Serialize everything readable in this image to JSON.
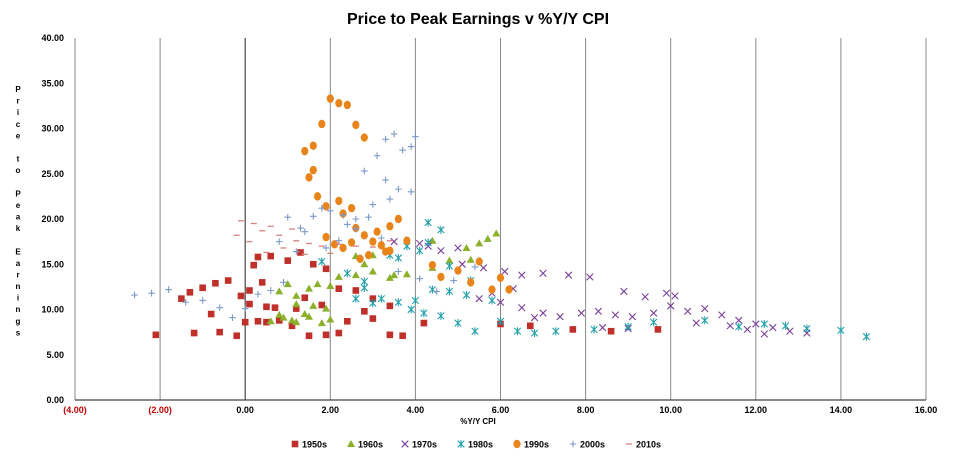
{
  "chart_data": {
    "type": "scatter",
    "title": "Price to Peak Earnings v %Y/Y CPI",
    "xlabel": "%Y/Y CPI",
    "ylabel": "Price to Peak Earnings",
    "xlim": [
      -4,
      16
    ],
    "ylim": [
      0,
      40
    ],
    "x_ticks": [
      "(4.00)",
      "(2.00)",
      "0.00",
      "2.00",
      "4.00",
      "6.00",
      "8.00",
      "10.00",
      "12.00",
      "14.00",
      "16.00"
    ],
    "y_ticks": [
      "0.00",
      "5.00",
      "10.00",
      "15.00",
      "20.00",
      "25.00",
      "30.00",
      "35.00",
      "40.00"
    ],
    "grid": "vertical",
    "legend_position": "bottom",
    "series": [
      {
        "name": "1950s",
        "marker": "square",
        "color": "#c0302a",
        "points": [
          [
            -2.1,
            7.2
          ],
          [
            -1.2,
            7.4
          ],
          [
            -0.6,
            7.5
          ],
          [
            -0.2,
            7.1
          ],
          [
            0.0,
            8.6
          ],
          [
            0.3,
            8.7
          ],
          [
            0.5,
            8.6
          ],
          [
            0.8,
            8.8
          ],
          [
            1.1,
            8.2
          ],
          [
            1.5,
            7.1
          ],
          [
            1.9,
            7.2
          ],
          [
            2.2,
            7.4
          ],
          [
            2.4,
            8.7
          ],
          [
            3.0,
            9.0
          ],
          [
            3.4,
            7.2
          ],
          [
            3.7,
            7.1
          ],
          [
            4.2,
            8.5
          ],
          [
            -1.5,
            11.2
          ],
          [
            -1.3,
            11.9
          ],
          [
            -1.0,
            12.4
          ],
          [
            -0.7,
            12.9
          ],
          [
            -0.4,
            13.2
          ],
          [
            -0.1,
            11.5
          ],
          [
            0.1,
            12.1
          ],
          [
            0.4,
            13.0
          ],
          [
            0.2,
            14.9
          ],
          [
            0.3,
            15.8
          ],
          [
            0.6,
            15.9
          ],
          [
            1.0,
            15.4
          ],
          [
            1.3,
            16.3
          ],
          [
            1.6,
            15.0
          ],
          [
            1.9,
            14.5
          ],
          [
            0.5,
            10.3
          ],
          [
            0.7,
            10.2
          ],
          [
            1.2,
            10.1
          ],
          [
            1.8,
            10.5
          ],
          [
            2.2,
            12.3
          ],
          [
            2.6,
            12.1
          ],
          [
            3.0,
            11.2
          ],
          [
            3.4,
            10.4
          ],
          [
            6.0,
            8.4
          ],
          [
            6.7,
            8.2
          ],
          [
            7.7,
            7.8
          ],
          [
            8.6,
            7.6
          ],
          [
            9.7,
            7.8
          ],
          [
            -0.8,
            9.5
          ],
          [
            0.1,
            10.6
          ],
          [
            1.4,
            11.3
          ],
          [
            2.8,
            9.8
          ]
        ]
      },
      {
        "name": "1960s",
        "marker": "triangle",
        "color": "#8ab02c",
        "points": [
          [
            0.6,
            8.7
          ],
          [
            0.9,
            9.1
          ],
          [
            1.2,
            8.6
          ],
          [
            1.5,
            9.2
          ],
          [
            1.8,
            8.5
          ],
          [
            2.0,
            8.9
          ],
          [
            0.8,
            12.0
          ],
          [
            1.0,
            12.8
          ],
          [
            1.2,
            11.5
          ],
          [
            1.5,
            12.3
          ],
          [
            1.7,
            12.8
          ],
          [
            2.0,
            12.6
          ],
          [
            1.2,
            10.6
          ],
          [
            1.6,
            10.4
          ],
          [
            2.2,
            13.6
          ],
          [
            2.6,
            13.8
          ],
          [
            3.0,
            14.2
          ],
          [
            3.4,
            13.5
          ],
          [
            2.6,
            15.9
          ],
          [
            3.0,
            16.0
          ],
          [
            3.5,
            13.8
          ],
          [
            3.8,
            13.9
          ],
          [
            4.4,
            14.6
          ],
          [
            4.8,
            15.4
          ],
          [
            5.3,
            15.5
          ],
          [
            5.5,
            17.3
          ],
          [
            5.7,
            17.8
          ],
          [
            5.9,
            18.4
          ],
          [
            4.4,
            17.6
          ],
          [
            5.2,
            16.8
          ],
          [
            1.4,
            9.5
          ],
          [
            1.9,
            10.1
          ],
          [
            1.1,
            8.8
          ],
          [
            0.8,
            9.4
          ],
          [
            2.8,
            15.0
          ]
        ]
      },
      {
        "name": "1970s",
        "marker": "x",
        "color": "#7a3f9a",
        "points": [
          [
            3.5,
            17.5
          ],
          [
            4.1,
            17.3
          ],
          [
            4.6,
            16.5
          ],
          [
            5.1,
            15.0
          ],
          [
            5.6,
            14.6
          ],
          [
            6.1,
            14.2
          ],
          [
            6.5,
            13.8
          ],
          [
            7.0,
            14.0
          ],
          [
            6.3,
            12.3
          ],
          [
            5.8,
            11.8
          ],
          [
            5.5,
            11.2
          ],
          [
            6.0,
            10.8
          ],
          [
            6.5,
            10.2
          ],
          [
            7.0,
            9.6
          ],
          [
            7.4,
            9.2
          ],
          [
            7.9,
            9.6
          ],
          [
            8.3,
            9.8
          ],
          [
            8.7,
            9.4
          ],
          [
            9.1,
            9.2
          ],
          [
            9.6,
            9.6
          ],
          [
            10.0,
            10.4
          ],
          [
            10.4,
            9.8
          ],
          [
            10.8,
            10.1
          ],
          [
            11.2,
            9.4
          ],
          [
            11.6,
            8.8
          ],
          [
            12.0,
            8.4
          ],
          [
            12.4,
            8.0
          ],
          [
            12.8,
            7.6
          ],
          [
            13.2,
            7.4
          ],
          [
            11.8,
            7.8
          ],
          [
            10.6,
            8.5
          ],
          [
            7.6,
            13.8
          ],
          [
            8.1,
            13.6
          ],
          [
            8.9,
            12.0
          ],
          [
            9.4,
            11.4
          ],
          [
            9.9,
            11.8
          ],
          [
            6.8,
            9.1
          ],
          [
            8.4,
            8.0
          ],
          [
            9.0,
            7.9
          ],
          [
            11.4,
            8.2
          ],
          [
            12.2,
            7.3
          ],
          [
            4.3,
            17.0
          ],
          [
            5.0,
            16.8
          ],
          [
            10.1,
            11.5
          ]
        ]
      },
      {
        "name": "1980s",
        "marker": "star",
        "color": "#22a0aa",
        "points": [
          [
            1.8,
            15.3
          ],
          [
            2.4,
            14.0
          ],
          [
            2.8,
            12.4
          ],
          [
            3.2,
            11.2
          ],
          [
            3.6,
            10.8
          ],
          [
            4.0,
            11.0
          ],
          [
            4.4,
            12.2
          ],
          [
            4.8,
            12.0
          ],
          [
            5.2,
            11.6
          ],
          [
            3.6,
            15.7
          ],
          [
            4.1,
            16.5
          ],
          [
            4.3,
            19.6
          ],
          [
            4.6,
            18.8
          ],
          [
            3.8,
            17.0
          ],
          [
            3.4,
            16.0
          ],
          [
            2.8,
            13.1
          ],
          [
            4.6,
            9.3
          ],
          [
            5.0,
            8.5
          ],
          [
            5.4,
            7.6
          ],
          [
            6.0,
            8.7
          ],
          [
            6.4,
            7.6
          ],
          [
            6.8,
            7.4
          ],
          [
            7.3,
            7.6
          ],
          [
            8.2,
            7.8
          ],
          [
            9.0,
            8.1
          ],
          [
            9.6,
            8.6
          ],
          [
            10.8,
            8.8
          ],
          [
            11.6,
            8.1
          ],
          [
            12.2,
            8.4
          ],
          [
            12.7,
            8.2
          ],
          [
            13.2,
            7.9
          ],
          [
            14.0,
            7.7
          ],
          [
            14.6,
            7.0
          ],
          [
            4.3,
            17.4
          ],
          [
            4.8,
            14.8
          ],
          [
            5.3,
            13.2
          ],
          [
            5.8,
            11.0
          ],
          [
            2.6,
            11.2
          ],
          [
            3.0,
            10.7
          ],
          [
            3.9,
            10.0
          ],
          [
            4.2,
            9.6
          ]
        ]
      },
      {
        "name": "1990s",
        "marker": "circle",
        "color": "#e8841a",
        "points": [
          [
            1.4,
            27.5
          ],
          [
            1.6,
            28.1
          ],
          [
            1.8,
            30.5
          ],
          [
            2.0,
            33.3
          ],
          [
            2.2,
            32.8
          ],
          [
            2.4,
            32.6
          ],
          [
            2.6,
            30.4
          ],
          [
            2.8,
            29.0
          ],
          [
            1.5,
            24.6
          ],
          [
            1.7,
            22.5
          ],
          [
            1.9,
            21.4
          ],
          [
            2.2,
            22.0
          ],
          [
            2.5,
            21.2
          ],
          [
            2.6,
            19.0
          ],
          [
            2.8,
            18.2
          ],
          [
            3.0,
            17.5
          ],
          [
            3.2,
            17.1
          ],
          [
            3.4,
            16.5
          ],
          [
            2.9,
            16.0
          ],
          [
            2.7,
            15.6
          ],
          [
            3.1,
            18.6
          ],
          [
            3.4,
            19.2
          ],
          [
            3.6,
            20.0
          ],
          [
            2.5,
            17.4
          ],
          [
            4.4,
            14.9
          ],
          [
            4.6,
            13.6
          ],
          [
            5.0,
            14.3
          ],
          [
            5.3,
            13.0
          ],
          [
            5.5,
            15.3
          ],
          [
            5.8,
            12.2
          ],
          [
            6.0,
            13.5
          ],
          [
            6.2,
            12.2
          ],
          [
            1.9,
            18.0
          ],
          [
            2.1,
            17.2
          ],
          [
            2.3,
            16.8
          ],
          [
            3.8,
            17.6
          ],
          [
            3.3,
            16.4
          ],
          [
            1.6,
            25.4
          ],
          [
            2.3,
            20.6
          ]
        ]
      },
      {
        "name": "2000s",
        "marker": "plus",
        "color": "#7b9acb",
        "points": [
          [
            -2.6,
            11.6
          ],
          [
            -2.2,
            11.8
          ],
          [
            -1.8,
            12.2
          ],
          [
            -1.4,
            10.8
          ],
          [
            -1.0,
            11.0
          ],
          [
            -0.6,
            10.2
          ],
          [
            -0.3,
            9.1
          ],
          [
            0.0,
            10.1
          ],
          [
            0.3,
            11.7
          ],
          [
            0.6,
            12.1
          ],
          [
            0.9,
            13.0
          ],
          [
            1.2,
            16.4
          ],
          [
            1.4,
            18.6
          ],
          [
            1.6,
            20.3
          ],
          [
            1.8,
            21.2
          ],
          [
            2.0,
            20.9
          ],
          [
            2.3,
            20.4
          ],
          [
            2.6,
            20.0
          ],
          [
            2.9,
            20.2
          ],
          [
            3.1,
            27.0
          ],
          [
            3.3,
            28.8
          ],
          [
            3.5,
            29.4
          ],
          [
            3.7,
            27.6
          ],
          [
            3.9,
            28.0
          ],
          [
            4.0,
            29.1
          ],
          [
            3.3,
            24.3
          ],
          [
            3.6,
            23.3
          ],
          [
            3.9,
            23.0
          ],
          [
            3.4,
            22.2
          ],
          [
            2.6,
            18.9
          ],
          [
            2.4,
            19.4
          ],
          [
            2.2,
            17.6
          ],
          [
            1.9,
            16.8
          ],
          [
            3.2,
            17.9
          ],
          [
            3.6,
            14.2
          ],
          [
            4.1,
            13.4
          ],
          [
            4.5,
            12.0
          ],
          [
            4.9,
            13.2
          ],
          [
            5.4,
            14.7
          ],
          [
            2.8,
            25.3
          ],
          [
            3.0,
            21.6
          ],
          [
            1.0,
            20.2
          ],
          [
            1.3,
            19.0
          ],
          [
            0.8,
            17.5
          ]
        ]
      },
      {
        "name": "2010s",
        "marker": "dash",
        "color": "#d9827e",
        "points": [
          [
            -0.1,
            19.8
          ],
          [
            0.2,
            19.5
          ],
          [
            0.4,
            18.7
          ],
          [
            0.8,
            18.2
          ],
          [
            1.2,
            17.6
          ],
          [
            1.5,
            17.3
          ],
          [
            1.8,
            17.0
          ],
          [
            2.2,
            17.2
          ],
          [
            2.6,
            17.0
          ],
          [
            3.0,
            16.9
          ],
          [
            3.4,
            17.6
          ],
          [
            0.1,
            17.5
          ],
          [
            0.5,
            16.3
          ],
          [
            0.9,
            16.8
          ],
          [
            1.4,
            16.1
          ],
          [
            2.0,
            16.2
          ],
          [
            -0.2,
            18.2
          ],
          [
            0.6,
            19.2
          ],
          [
            1.1,
            18.9
          ]
        ]
      }
    ]
  }
}
